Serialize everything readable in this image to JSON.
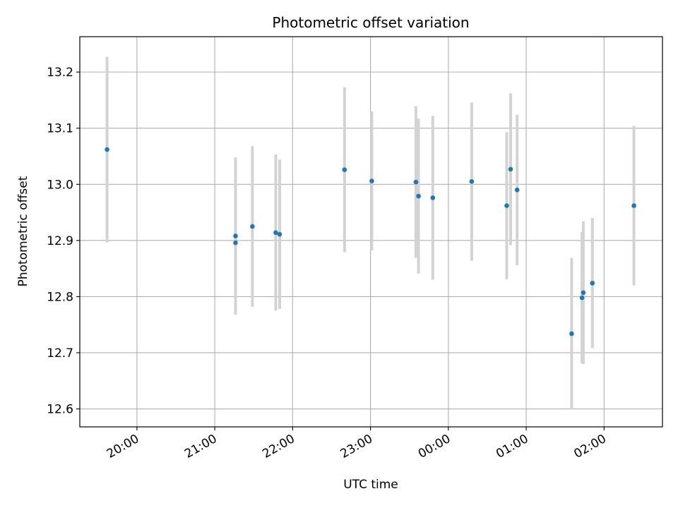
{
  "chart_data": {
    "type": "scatter",
    "title": "Photometric offset variation",
    "xlabel": "UTC time",
    "ylabel": "Photometric offset",
    "x_ticks": [
      "20:00",
      "21:00",
      "22:00",
      "23:00",
      "00:00",
      "01:00",
      "02:00"
    ],
    "y_ticks": [
      "12.6",
      "12.7",
      "12.8",
      "12.9",
      "13.0",
      "13.1",
      "13.2"
    ],
    "xlim": [
      "19:16",
      "02:45"
    ],
    "ylim": [
      12.568,
      13.263
    ],
    "grid": true,
    "point_color": "#1f77b4",
    "errorbar_color": "#d3d3d3",
    "points": [
      {
        "x": "19:37",
        "y": 13.062,
        "yerr": 0.165
      },
      {
        "x": "21:16",
        "y": 12.896,
        "yerr": 0.126
      },
      {
        "x": "21:16",
        "y": 12.908,
        "yerr": 0.14
      },
      {
        "x": "21:29",
        "y": 12.925,
        "yerr": 0.143
      },
      {
        "x": "21:47",
        "y": 12.914,
        "yerr": 0.139
      },
      {
        "x": "21:50",
        "y": 12.911,
        "yerr": 0.133
      },
      {
        "x": "22:40",
        "y": 13.026,
        "yerr": 0.147
      },
      {
        "x": "23:01",
        "y": 13.006,
        "yerr": 0.124
      },
      {
        "x": "23:35",
        "y": 13.004,
        "yerr": 0.135
      },
      {
        "x": "23:37",
        "y": 12.979,
        "yerr": 0.138
      },
      {
        "x": "23:48",
        "y": 12.976,
        "yerr": 0.146
      },
      {
        "x": "00:18",
        "y": 13.005,
        "yerr": 0.141
      },
      {
        "x": "00:45",
        "y": 12.962,
        "yerr": 0.131
      },
      {
        "x": "00:48",
        "y": 13.027,
        "yerr": 0.135
      },
      {
        "x": "00:53",
        "y": 12.99,
        "yerr": 0.134
      },
      {
        "x": "01:35",
        "y": 12.734,
        "yerr": 0.135
      },
      {
        "x": "01:43",
        "y": 12.798,
        "yerr": 0.117
      },
      {
        "x": "01:44",
        "y": 12.807,
        "yerr": 0.127
      },
      {
        "x": "01:51",
        "y": 12.824,
        "yerr": 0.116
      },
      {
        "x": "02:23",
        "y": 12.962,
        "yerr": 0.142
      }
    ]
  }
}
